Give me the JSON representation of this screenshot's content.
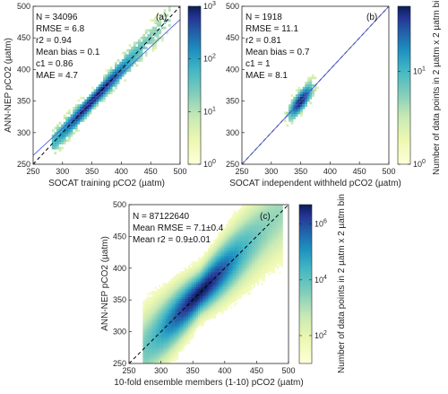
{
  "chart_data": [
    {
      "type": "heatmap",
      "panel_label": "(a)",
      "xlabel": "SOCAT training pCO2 (µatm)",
      "ylabel": "ANN-NEP pCO2 (µatm)",
      "xlim": [
        250,
        500
      ],
      "ylim": [
        250,
        500
      ],
      "xticks": [
        250,
        300,
        350,
        400,
        450,
        500
      ],
      "yticks": [
        250,
        300,
        350,
        400,
        450,
        500
      ],
      "stats": [
        "N = 34096",
        "RMSE = 6.8",
        "r2 = 0.94",
        "Mean bias = 0.1",
        "c1 = 0.86",
        "MAE = 4.7"
      ],
      "regression_line": {
        "slope": 0.86,
        "intercept": 49.0,
        "color": "#4d5fd0"
      },
      "one_to_one_line": true,
      "density": {
        "center": [
          352,
          352
        ],
        "x_range": [
          280,
          480
        ],
        "spread": 9,
        "peak_log": 3
      },
      "colorbar": {
        "scale": "log",
        "ticks": [
          "10^0",
          "10^1",
          "10^2",
          "10^3"
        ],
        "range": [
          1,
          1000
        ]
      }
    },
    {
      "type": "heatmap",
      "panel_label": "(b)",
      "xlabel": "SOCAT independent withheld pCO2 (µatm)",
      "ylabel": "",
      "xlim": [
        250,
        500
      ],
      "ylim": [
        250,
        500
      ],
      "xticks": [
        250,
        300,
        350,
        400,
        450,
        500
      ],
      "yticks": [
        250,
        300,
        350,
        400,
        450,
        500
      ],
      "stats": [
        "N = 1918",
        "RMSE = 11.1",
        "r2 = 0.81",
        "Mean bias = 0.7",
        "c1 = 1",
        "MAE = 8.1"
      ],
      "regression_line": {
        "slope": 1.0,
        "intercept": 0.0,
        "color": "#4d5fd0"
      },
      "one_to_one_line": true,
      "density": {
        "center": [
          348,
          345
        ],
        "x_range": [
          320,
          380
        ],
        "spread": 11,
        "peak_log": 1.5
      },
      "colorbar": {
        "scale": "log",
        "ticks": [
          "10^0",
          "10^1"
        ],
        "range": [
          1,
          50
        ],
        "label": "Number of data points in 2 µatm x 2 µatm bin"
      }
    },
    {
      "type": "heatmap",
      "panel_label": "(c)",
      "xlabel": "10-fold ensemble members (1-10) pCO2 (µatm)",
      "ylabel": "ANN-NEP pCO2 (µatm)",
      "xlim": [
        250,
        500
      ],
      "ylim": [
        250,
        500
      ],
      "xticks": [
        250,
        300,
        350,
        400,
        450,
        500
      ],
      "yticks": [
        250,
        300,
        350,
        400,
        450,
        500
      ],
      "stats": [
        "N = 87122640",
        "Mean RMSE = 7.1±0.4",
        "Mean r2 = 0.9±0.01"
      ],
      "one_to_one_line": true,
      "density": {
        "center": [
          360,
          360
        ],
        "x_range": [
          270,
          490
        ],
        "spread": 20,
        "peak_log": 6.5
      },
      "colorbar": {
        "scale": "log",
        "ticks": [
          "10^2",
          "10^4",
          "10^6"
        ],
        "range": [
          10,
          5000000
        ],
        "label": "Number of data points in 2 µatm x 2 µatm bin"
      }
    }
  ],
  "colors": {
    "dark": "#08306b",
    "mid": "#1d91c0",
    "light": "#ffffd9",
    "regression": "#4d5fd0"
  }
}
